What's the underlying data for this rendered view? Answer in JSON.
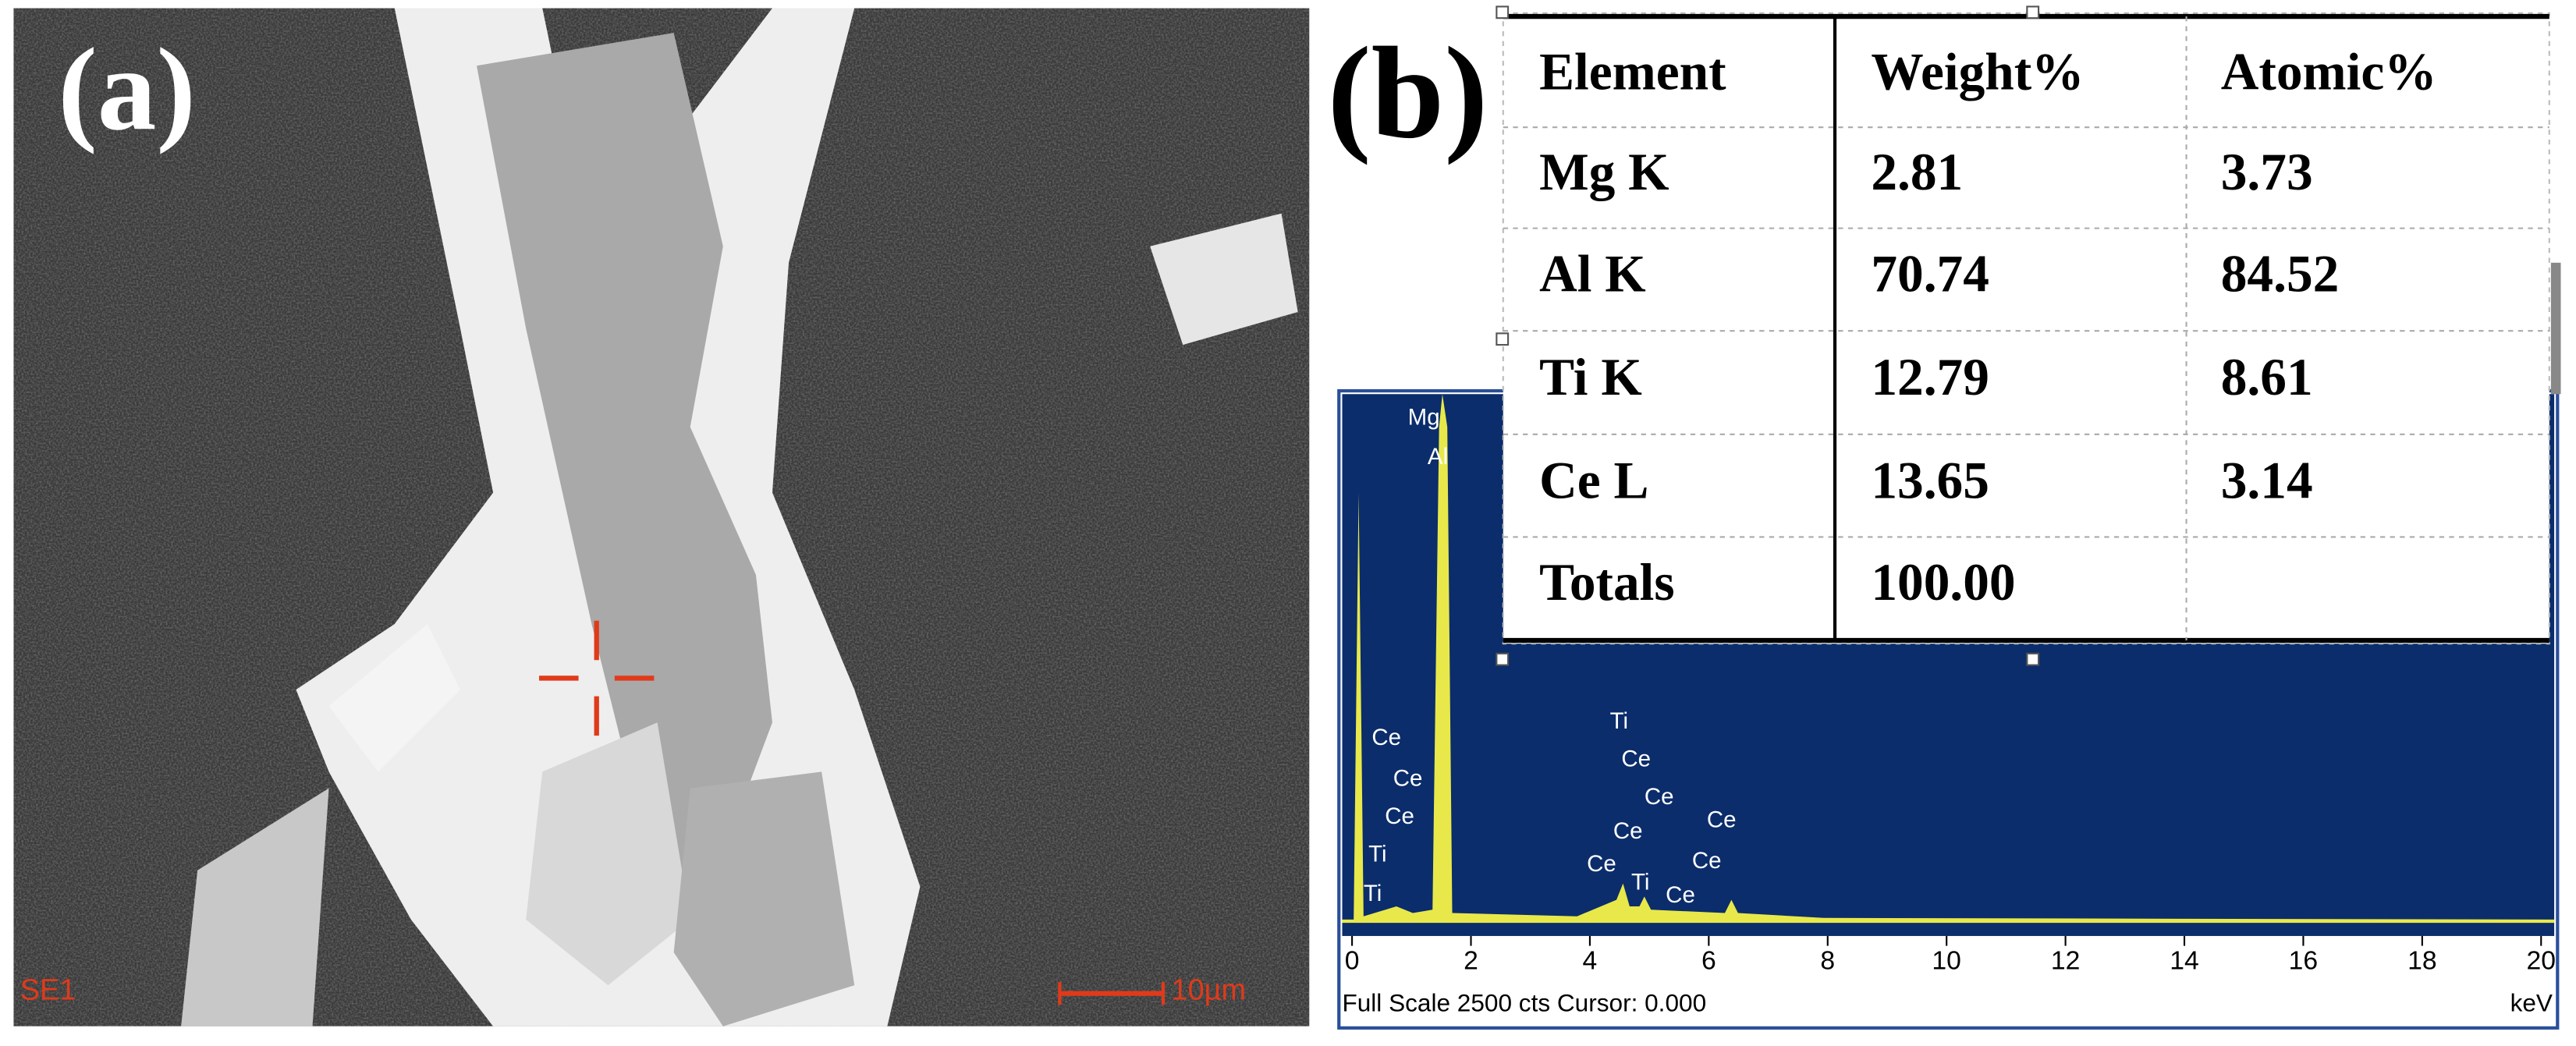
{
  "panel_a": {
    "label": "(a)",
    "detector": "SE1",
    "scale_bar": "10µm"
  },
  "panel_b": {
    "label": "(b)",
    "table": {
      "header": [
        "Element",
        "Weight%",
        "Atomic%"
      ],
      "rows": [
        [
          "Mg K",
          2.81,
          3.73
        ],
        [
          "Al K",
          70.74,
          84.52
        ],
        [
          "Ti K",
          12.79,
          8.61
        ],
        [
          "Ce L",
          13.65,
          3.14
        ],
        [
          "Totals",
          "100.00"
        ]
      ]
    },
    "spectrum": {
      "xticks": [
        0,
        2,
        4,
        6,
        8,
        10,
        12,
        14,
        16,
        18,
        20
      ],
      "unit": "keV",
      "footer": "Full Scale 2500 cts Cursor: 0.000",
      "peak_labels": [
        "Mg",
        "Al",
        "Ce",
        "Ce",
        "Ce",
        "Ti",
        "Ti",
        "Ti",
        "Ce",
        "Ce",
        "Ce",
        "Ce",
        "Ce",
        "Ti",
        "Ce",
        "Ce"
      ]
    }
  }
}
